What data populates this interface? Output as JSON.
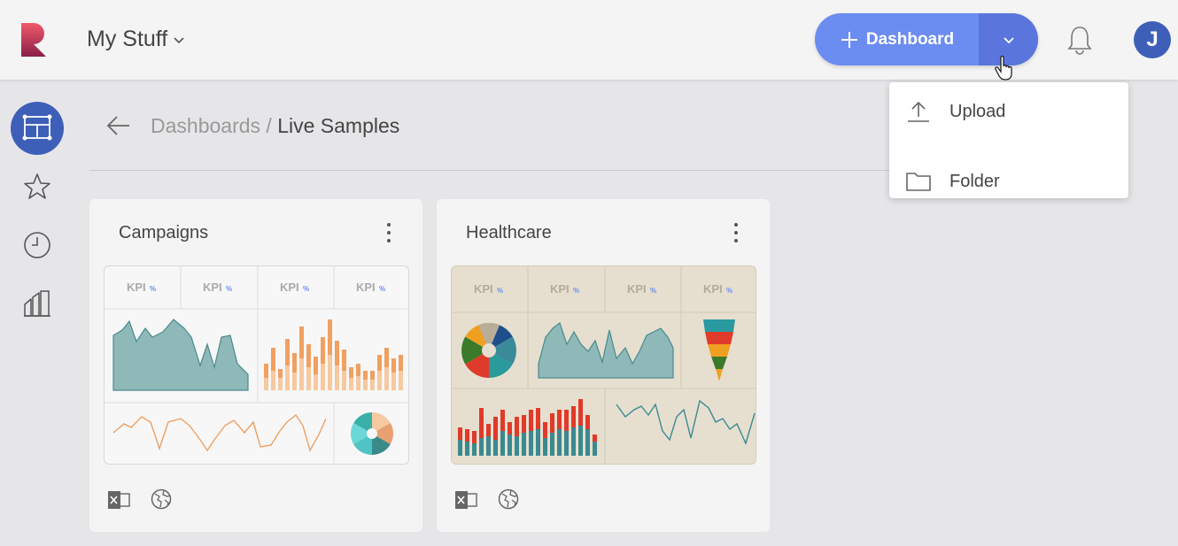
{
  "header": {
    "workspace_label": "My Stuff",
    "dashboard_button_label": "Dashboard",
    "avatar_initial": "J"
  },
  "dropdown": {
    "items": [
      {
        "label": "Upload",
        "icon": "upload-icon"
      },
      {
        "label": "Folder",
        "icon": "folder-icon"
      }
    ]
  },
  "sidebar": {
    "items": [
      {
        "icon": "dashboards-icon",
        "active": true
      },
      {
        "icon": "star-icon"
      },
      {
        "icon": "clock-icon"
      },
      {
        "icon": "datasets-icon"
      }
    ]
  },
  "breadcrumb": {
    "parent": "Dashboards",
    "separator": " / ",
    "current": "Live Samples"
  },
  "cards": [
    {
      "title": "Campaigns",
      "kpi_label": "KPI",
      "kpi_symbol": "%",
      "theme": "light"
    },
    {
      "title": "Healthcare",
      "kpi_label": "KPI",
      "kpi_symbol": "%",
      "theme": "beige"
    }
  ],
  "colors": {
    "accent": "#6b8cf0",
    "accent_dark": "#5a76dc",
    "active_nav": "#3e5fb8",
    "teal": "#7fb0b0",
    "orange": "#f0a060",
    "healthcare_bg": "#e6dfd0"
  }
}
